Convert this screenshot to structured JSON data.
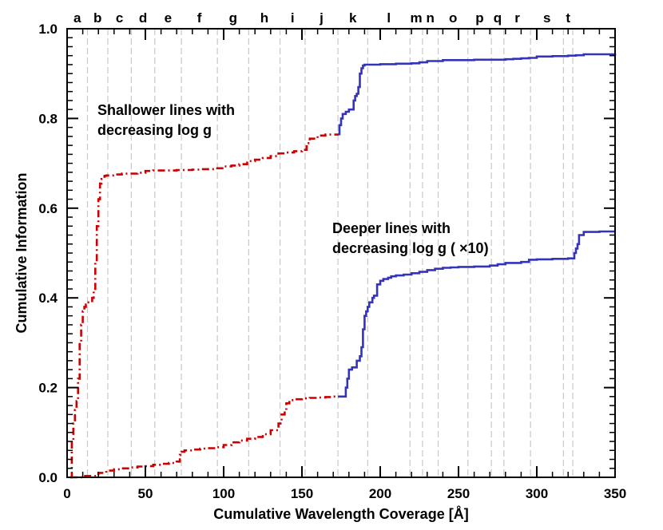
{
  "chart_data": {
    "type": "line",
    "xlabel": "Cumulative Wavelength Coverage [Å]",
    "ylabel": "Cumulative Information",
    "xlim": [
      0,
      350
    ],
    "ylim": [
      0,
      1.0
    ],
    "x_ticks": [
      0,
      50,
      100,
      150,
      200,
      250,
      300,
      350
    ],
    "y_ticks": [
      0.0,
      0.2,
      0.4,
      0.6,
      0.8,
      1.0
    ],
    "x_tick_labels": [
      "0",
      "50",
      "100",
      "150",
      "200",
      "250",
      "300",
      "350"
    ],
    "y_tick_labels": [
      "0.0",
      "0.2",
      "0.4",
      "0.6",
      "0.8",
      "1.0"
    ],
    "grid": false,
    "region_markers": [
      {
        "label": "a",
        "x": 13
      },
      {
        "label": "b",
        "x": 26
      },
      {
        "label": "c",
        "x": 41
      },
      {
        "label": "d",
        "x": 56
      },
      {
        "label": "e",
        "x": 73
      },
      {
        "label": "f",
        "x": 96
      },
      {
        "label": "g",
        "x": 116
      },
      {
        "label": "h",
        "x": 136
      },
      {
        "label": "i",
        "x": 152
      },
      {
        "label": "j",
        "x": 173
      },
      {
        "label": "k",
        "x": 192
      },
      {
        "label": "l",
        "x": 219
      },
      {
        "label": "m",
        "x": 227
      },
      {
        "label": "n",
        "x": 237
      },
      {
        "label": "o",
        "x": 256
      },
      {
        "label": "p",
        "x": 271
      },
      {
        "label": "q",
        "x": 279
      },
      {
        "label": "r",
        "x": 296
      },
      {
        "label": "s",
        "x": 317
      },
      {
        "label": "t",
        "x": 323
      }
    ],
    "annotations": [
      {
        "lines": [
          "Shallower lines with",
          "decreasing log g"
        ]
      },
      {
        "lines": [
          "Deeper lines with",
          "decreasing log g ( ×10)"
        ]
      }
    ],
    "colors": {
      "red": "#cc0000",
      "blue": "#3333bb"
    },
    "series": [
      {
        "color": "#cc0000",
        "style": "dash-dot",
        "x": [
          2,
          3,
          4,
          5,
          6,
          7,
          8,
          9,
          10,
          11,
          12,
          13,
          15,
          16,
          17,
          18,
          19,
          20,
          21,
          22,
          23,
          24,
          25,
          30,
          35,
          40,
          45,
          50,
          55,
          60,
          65,
          70,
          75,
          80,
          85,
          90,
          95,
          100,
          105,
          110,
          115,
          120,
          125,
          130,
          135,
          140,
          145,
          150,
          153,
          155,
          160,
          165,
          170,
          173
        ],
        "y": [
          0.0,
          0.08,
          0.12,
          0.15,
          0.17,
          0.22,
          0.3,
          0.34,
          0.37,
          0.38,
          0.385,
          0.39,
          0.39,
          0.4,
          0.42,
          0.48,
          0.56,
          0.62,
          0.655,
          0.665,
          0.67,
          0.672,
          0.673,
          0.675,
          0.677,
          0.677,
          0.679,
          0.683,
          0.684,
          0.684,
          0.684,
          0.685,
          0.685,
          0.686,
          0.687,
          0.687,
          0.689,
          0.693,
          0.695,
          0.698,
          0.705,
          0.708,
          0.712,
          0.716,
          0.722,
          0.724,
          0.727,
          0.73,
          0.745,
          0.755,
          0.762,
          0.764,
          0.764,
          0.765
        ]
      },
      {
        "color": "#3333bb",
        "style": "solid",
        "x": [
          173,
          174,
          175,
          176,
          178,
          179,
          180,
          182,
          183,
          184,
          185,
          186,
          187,
          188,
          189,
          190,
          200,
          210,
          215,
          220,
          225,
          230,
          240,
          250,
          260,
          270,
          280,
          285,
          290,
          295,
          300,
          310,
          320,
          325,
          330,
          340,
          350
        ],
        "y": [
          0.765,
          0.785,
          0.8,
          0.81,
          0.815,
          0.815,
          0.82,
          0.82,
          0.84,
          0.85,
          0.855,
          0.87,
          0.9,
          0.912,
          0.918,
          0.92,
          0.921,
          0.922,
          0.922,
          0.923,
          0.925,
          0.928,
          0.93,
          0.93,
          0.931,
          0.931,
          0.932,
          0.933,
          0.934,
          0.935,
          0.938,
          0.939,
          0.94,
          0.941,
          0.943,
          0.943,
          0.945
        ]
      },
      {
        "color": "#cc0000",
        "style": "dash-dot",
        "x": [
          2,
          10,
          20,
          25,
          30,
          35,
          40,
          45,
          50,
          55,
          60,
          65,
          70,
          72,
          73,
          75,
          80,
          85,
          90,
          95,
          100,
          105,
          110,
          115,
          120,
          125,
          130,
          135,
          137,
          139,
          140,
          142,
          145,
          150,
          155,
          160,
          165,
          170,
          173
        ],
        "y": [
          0.0,
          0.003,
          0.01,
          0.015,
          0.018,
          0.02,
          0.022,
          0.024,
          0.025,
          0.028,
          0.03,
          0.032,
          0.035,
          0.05,
          0.057,
          0.06,
          0.062,
          0.064,
          0.065,
          0.067,
          0.072,
          0.078,
          0.082,
          0.086,
          0.09,
          0.096,
          0.105,
          0.12,
          0.14,
          0.15,
          0.165,
          0.172,
          0.174,
          0.176,
          0.177,
          0.178,
          0.179,
          0.18,
          0.18
        ]
      },
      {
        "color": "#3333bb",
        "style": "solid",
        "x": [
          173,
          178,
          179,
          180,
          182,
          183,
          185,
          187,
          188,
          189,
          190,
          191,
          192,
          193,
          195,
          196,
          198,
          200,
          202,
          205,
          207,
          210,
          215,
          220,
          225,
          230,
          235,
          240,
          245,
          250,
          260,
          270,
          275,
          280,
          290,
          295,
          300,
          310,
          320,
          324,
          325,
          326,
          327,
          330,
          340,
          350
        ],
        "y": [
          0.18,
          0.2,
          0.22,
          0.24,
          0.245,
          0.245,
          0.26,
          0.27,
          0.29,
          0.33,
          0.36,
          0.37,
          0.38,
          0.39,
          0.4,
          0.405,
          0.43,
          0.438,
          0.442,
          0.445,
          0.448,
          0.45,
          0.452,
          0.455,
          0.458,
          0.462,
          0.465,
          0.467,
          0.468,
          0.469,
          0.47,
          0.472,
          0.475,
          0.478,
          0.48,
          0.485,
          0.486,
          0.487,
          0.488,
          0.5,
          0.51,
          0.52,
          0.54,
          0.547,
          0.548,
          0.548
        ]
      }
    ]
  }
}
